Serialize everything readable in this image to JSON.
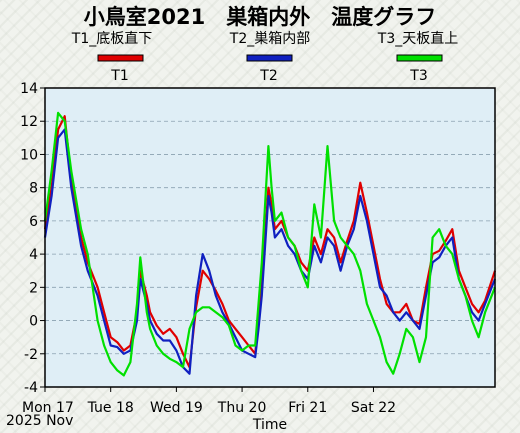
{
  "chart_data": {
    "type": "line",
    "title": "小鳥室2021　巣箱内外　温度グラフ",
    "subtitles": [
      "T1_底板直下",
      "T2_巣箱内部",
      "T3_天板直上"
    ],
    "xlabel": "Time",
    "x_tick_labels": [
      "Mon 17",
      "Tue 18",
      "Wed 19",
      "Thu 20",
      "Fri 21",
      "Sat 22"
    ],
    "x_sub_label": "2025 Nov",
    "x_range_days": [
      0,
      6.85
    ],
    "ylim": [
      -4,
      14
    ],
    "y_ticks": [
      -4,
      -2,
      0,
      2,
      4,
      6,
      8,
      10,
      12,
      14
    ],
    "grid": "horizontal dashed",
    "legend_position": "top",
    "plot_background": "#dfeef6",
    "series": [
      {
        "name": "T1",
        "color": "#e00000",
        "x": [
          0,
          0.1,
          0.2,
          0.3,
          0.4,
          0.55,
          0.65,
          0.8,
          0.9,
          1.0,
          1.1,
          1.2,
          1.3,
          1.4,
          1.45,
          1.55,
          1.6,
          1.7,
          1.8,
          1.9,
          2.0,
          2.1,
          2.2,
          2.3,
          2.4,
          2.5,
          2.6,
          2.7,
          2.8,
          2.9,
          3.0,
          3.1,
          3.2,
          3.25,
          3.3,
          3.35,
          3.4,
          3.45,
          3.5,
          3.6,
          3.7,
          3.8,
          3.9,
          4.0,
          4.1,
          4.2,
          4.3,
          4.4,
          4.5,
          4.6,
          4.7,
          4.8,
          4.9,
          5.0,
          5.1,
          5.2,
          5.3,
          5.4,
          5.5,
          5.6,
          5.7,
          5.8,
          5.9,
          6.0,
          6.1,
          6.2,
          6.3,
          6.4,
          6.5,
          6.6,
          6.7,
          6.85
        ],
        "values": [
          5.5,
          8,
          11.5,
          12.3,
          8.5,
          5,
          3.5,
          2,
          0.5,
          -1,
          -1.3,
          -1.8,
          -1.5,
          0.5,
          3,
          1.5,
          0.5,
          -0.3,
          -0.8,
          -0.5,
          -1,
          -2,
          -2.8,
          0.8,
          3,
          2.5,
          1.8,
          1,
          0,
          -0.5,
          -1,
          -1.5,
          -2,
          0,
          2,
          5,
          8,
          7,
          5.5,
          6,
          5,
          4.5,
          3.5,
          3,
          5,
          4,
          5.5,
          5,
          3.5,
          4.8,
          6,
          8.3,
          6.5,
          4.5,
          2.5,
          1,
          0.5,
          0.5,
          1,
          0,
          -0.2,
          2,
          4,
          4.2,
          4.8,
          5.5,
          3,
          2,
          1,
          0.5,
          1.2,
          3
        ]
      },
      {
        "name": "T2",
        "color": "#1020c0",
        "x": [
          0,
          0.1,
          0.2,
          0.3,
          0.4,
          0.55,
          0.65,
          0.8,
          0.9,
          1.0,
          1.1,
          1.2,
          1.3,
          1.4,
          1.45,
          1.55,
          1.6,
          1.7,
          1.8,
          1.9,
          2.0,
          2.1,
          2.2,
          2.3,
          2.4,
          2.5,
          2.6,
          2.7,
          2.8,
          2.9,
          3.0,
          3.1,
          3.2,
          3.25,
          3.3,
          3.35,
          3.4,
          3.45,
          3.5,
          3.6,
          3.7,
          3.8,
          3.9,
          4.0,
          4.1,
          4.2,
          4.3,
          4.4,
          4.5,
          4.6,
          4.7,
          4.8,
          4.9,
          5.0,
          5.1,
          5.2,
          5.3,
          5.4,
          5.5,
          5.6,
          5.7,
          5.8,
          5.9,
          6.0,
          6.1,
          6.2,
          6.3,
          6.4,
          6.5,
          6.6,
          6.7,
          6.85
        ],
        "values": [
          5,
          7.5,
          11,
          11.5,
          8,
          4.5,
          3,
          1.5,
          0,
          -1.5,
          -1.6,
          -2,
          -1.8,
          0,
          2.5,
          1,
          0,
          -0.8,
          -1.2,
          -1.2,
          -1.8,
          -2.8,
          -3.2,
          1.5,
          4,
          3,
          1.5,
          0.5,
          -0.2,
          -1,
          -1.8,
          -2,
          -2.2,
          -0.5,
          1.5,
          4.5,
          7.5,
          6.5,
          5,
          5.5,
          4.5,
          4,
          3,
          2.5,
          4.5,
          3.5,
          5,
          4.5,
          3,
          4.5,
          5.5,
          7.5,
          6,
          4,
          2,
          1.5,
          0.5,
          0,
          0.5,
          0,
          -0.5,
          1.5,
          3.5,
          3.8,
          4.5,
          5,
          2.5,
          1.5,
          0.5,
          0,
          1,
          2.5
        ]
      },
      {
        "name": "T3",
        "color": "#00e000",
        "x": [
          0,
          0.1,
          0.2,
          0.3,
          0.4,
          0.55,
          0.65,
          0.8,
          0.9,
          1.0,
          1.1,
          1.2,
          1.3,
          1.4,
          1.45,
          1.55,
          1.6,
          1.7,
          1.8,
          1.9,
          2.0,
          2.1,
          2.2,
          2.3,
          2.4,
          2.5,
          2.6,
          2.7,
          2.8,
          2.9,
          3.0,
          3.1,
          3.2,
          3.25,
          3.3,
          3.35,
          3.4,
          3.45,
          3.5,
          3.6,
          3.7,
          3.8,
          3.9,
          4.0,
          4.1,
          4.2,
          4.3,
          4.4,
          4.5,
          4.6,
          4.7,
          4.8,
          4.9,
          5.0,
          5.1,
          5.2,
          5.3,
          5.4,
          5.5,
          5.6,
          5.7,
          5.8,
          5.9,
          6.0,
          6.1,
          6.2,
          6.3,
          6.4,
          6.5,
          6.6,
          6.7,
          6.85
        ],
        "values": [
          6,
          9,
          12.5,
          12,
          9,
          5.5,
          4,
          0,
          -1.5,
          -2.5,
          -3,
          -3.3,
          -2.5,
          1,
          3.8,
          0.5,
          -0.5,
          -1.5,
          -2,
          -2.3,
          -2.5,
          -2.8,
          -0.5,
          0.5,
          0.8,
          0.8,
          0.5,
          0.2,
          -0.3,
          -1.5,
          -1.8,
          -1.5,
          -1.5,
          1,
          3.5,
          7,
          10.5,
          8,
          6,
          6.5,
          5,
          4.5,
          3,
          2,
          7,
          5,
          10.5,
          6,
          5,
          4.5,
          4,
          3,
          1,
          0,
          -1,
          -2.5,
          -3.2,
          -2,
          -0.5,
          -1,
          -2.5,
          -1,
          5,
          5.5,
          4.5,
          4,
          2.5,
          1.5,
          0,
          -1,
          0.5,
          2
        ]
      }
    ]
  }
}
